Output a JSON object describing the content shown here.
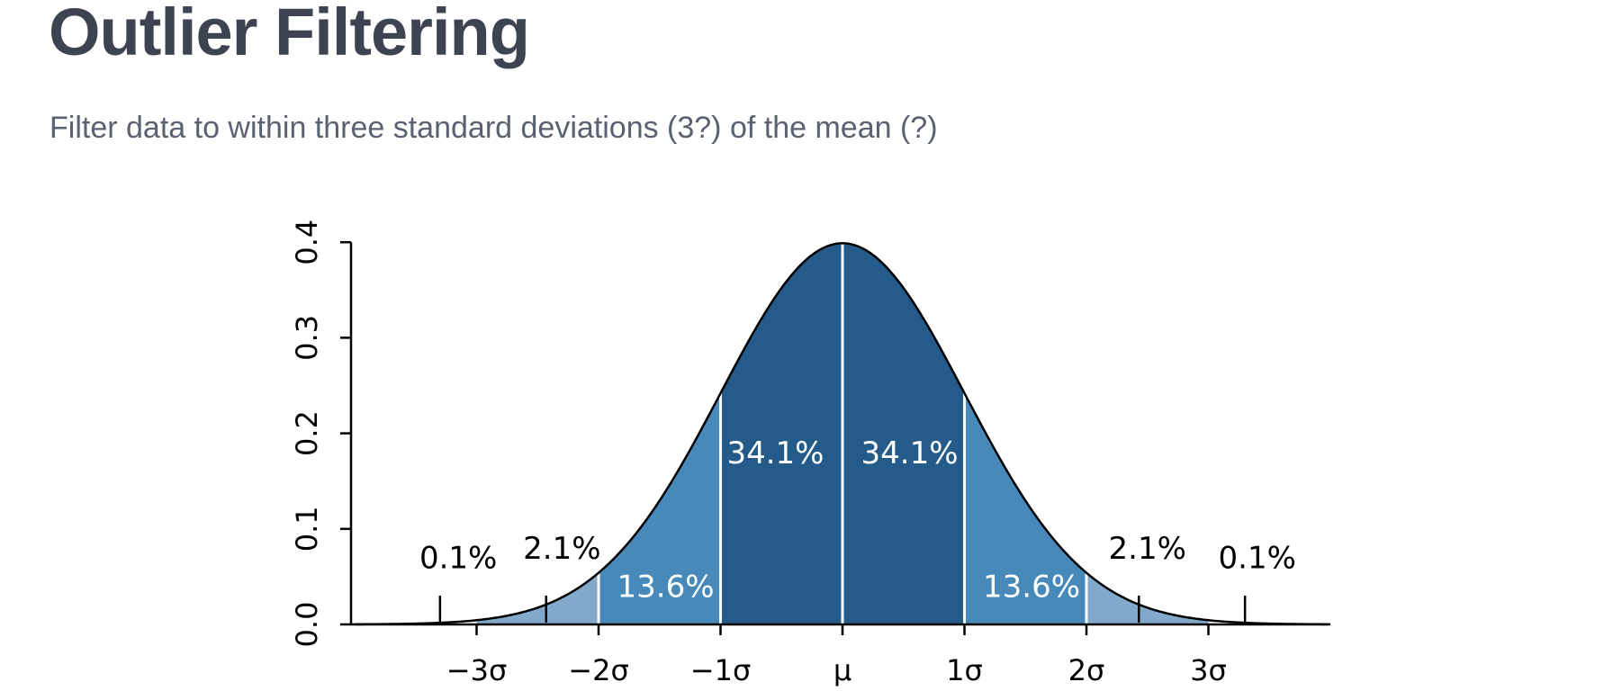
{
  "slide": {
    "title": "Outlier Filtering",
    "subtitle": "Filter data to within three standard deviations (3?) of the mean (?)"
  },
  "colors": {
    "dark": "#245b8a",
    "mid": "#478ab9",
    "light": "#82a9cb",
    "outline": "#000000",
    "title": "#3d4351",
    "subtitle": "#5b6170"
  },
  "chart_data": {
    "type": "area",
    "title": "",
    "xlabel": "",
    "ylabel": "",
    "xlim": [
      -4,
      4
    ],
    "ylim": [
      0,
      0.4
    ],
    "grid": false,
    "legend": "none",
    "x_ticks": [
      {
        "value": -3,
        "label": "−3σ"
      },
      {
        "value": -2,
        "label": "−2σ"
      },
      {
        "value": -1,
        "label": "−1σ"
      },
      {
        "value": 0,
        "label": "μ"
      },
      {
        "value": 1,
        "label": "1σ"
      },
      {
        "value": 2,
        "label": "2σ"
      },
      {
        "value": 3,
        "label": "3σ"
      }
    ],
    "y_ticks": [
      {
        "value": 0.0,
        "label": "0.0"
      },
      {
        "value": 0.1,
        "label": "0.1"
      },
      {
        "value": 0.2,
        "label": "0.2"
      },
      {
        "value": 0.3,
        "label": "0.3"
      },
      {
        "value": 0.4,
        "label": "0.4"
      }
    ],
    "curve": "standard normal density",
    "regions": [
      {
        "from": -3,
        "to": -2,
        "shade": "light"
      },
      {
        "from": -2,
        "to": -1,
        "shade": "mid"
      },
      {
        "from": -1,
        "to": 0,
        "shade": "dark"
      },
      {
        "from": 0,
        "to": 1,
        "shade": "dark"
      },
      {
        "from": 1,
        "to": 2,
        "shade": "mid"
      },
      {
        "from": 2,
        "to": 3,
        "shade": "light"
      }
    ],
    "dividers": [
      -2,
      -1,
      0,
      1,
      2
    ],
    "annotations": [
      {
        "label": "0.1%",
        "x": -3.15,
        "y": 0.07,
        "pointer_x": -3.3,
        "color": "#000000"
      },
      {
        "label": "2.1%",
        "x": -2.3,
        "y": 0.08,
        "pointer_x": -2.43,
        "color": "#000000"
      },
      {
        "label": "13.6%",
        "x": -1.45,
        "y": 0.04,
        "pointer_x": null,
        "color": "#ffffff"
      },
      {
        "label": "34.1%",
        "x": -0.55,
        "y": 0.18,
        "pointer_x": null,
        "color": "#ffffff"
      },
      {
        "label": "34.1%",
        "x": 0.55,
        "y": 0.18,
        "pointer_x": null,
        "color": "#ffffff"
      },
      {
        "label": "13.6%",
        "x": 1.55,
        "y": 0.04,
        "pointer_x": null,
        "color": "#ffffff"
      },
      {
        "label": "2.1%",
        "x": 2.5,
        "y": 0.08,
        "pointer_x": 2.43,
        "color": "#000000"
      },
      {
        "label": "0.1%",
        "x": 3.4,
        "y": 0.07,
        "pointer_x": 3.3,
        "color": "#000000"
      }
    ]
  }
}
